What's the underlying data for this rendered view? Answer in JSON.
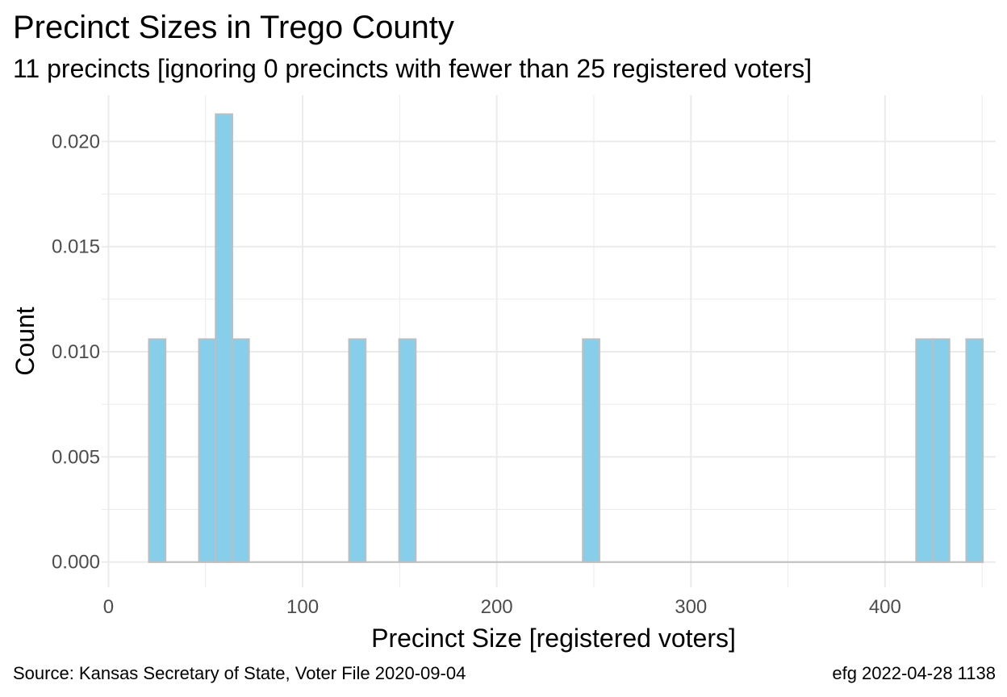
{
  "title": "Precinct Sizes in Trego County",
  "subtitle": "11 precincts [ignoring 0 precincts with fewer than 25 registered voters]",
  "caption_left": "Source:  Kansas Secretary of State, Voter File  2020-09-04",
  "caption_right": "efg 2022-04-28 1138",
  "colors": {
    "bar_fill": "#87CEEB",
    "bar_stroke": "#BEBEBE",
    "grid": "#EBEBEB",
    "tick_text": "#4D4D4D"
  },
  "chart_data": {
    "type": "bar",
    "subtype": "histogram",
    "xlabel": "Precinct Size [registered voters]",
    "ylabel": "Count",
    "xlim": [
      -3.5,
      457
    ],
    "ylim": [
      -0.0012,
      0.0222
    ],
    "x_ticks": [
      0,
      100,
      200,
      300,
      400
    ],
    "x_tick_labels": [
      "0",
      "100",
      "200",
      "300",
      "400"
    ],
    "y_ticks": [
      0,
      0.005,
      0.01,
      0.015,
      0.02
    ],
    "y_tick_labels": [
      "0.000",
      "0.005",
      "0.010",
      "0.015",
      "0.020"
    ],
    "grid": true,
    "bin_width": 8.6,
    "bins": [
      {
        "x0": 20.8,
        "x1": 29.4,
        "value": 0.0106
      },
      {
        "x0": 46.6,
        "x1": 55.2,
        "value": 0.0106
      },
      {
        "x0": 55.2,
        "x1": 63.8,
        "value": 0.0213
      },
      {
        "x0": 63.8,
        "x1": 72.4,
        "value": 0.0106
      },
      {
        "x0": 123.9,
        "x1": 132.5,
        "value": 0.0106
      },
      {
        "x0": 149.7,
        "x1": 158.3,
        "value": 0.0106
      },
      {
        "x0": 244.3,
        "x1": 252.9,
        "value": 0.0106
      },
      {
        "x0": 416.0,
        "x1": 424.6,
        "value": 0.0106
      },
      {
        "x0": 424.6,
        "x1": 433.2,
        "value": 0.0106
      },
      {
        "x0": 441.8,
        "x1": 450.4,
        "value": 0.0106
      }
    ]
  }
}
